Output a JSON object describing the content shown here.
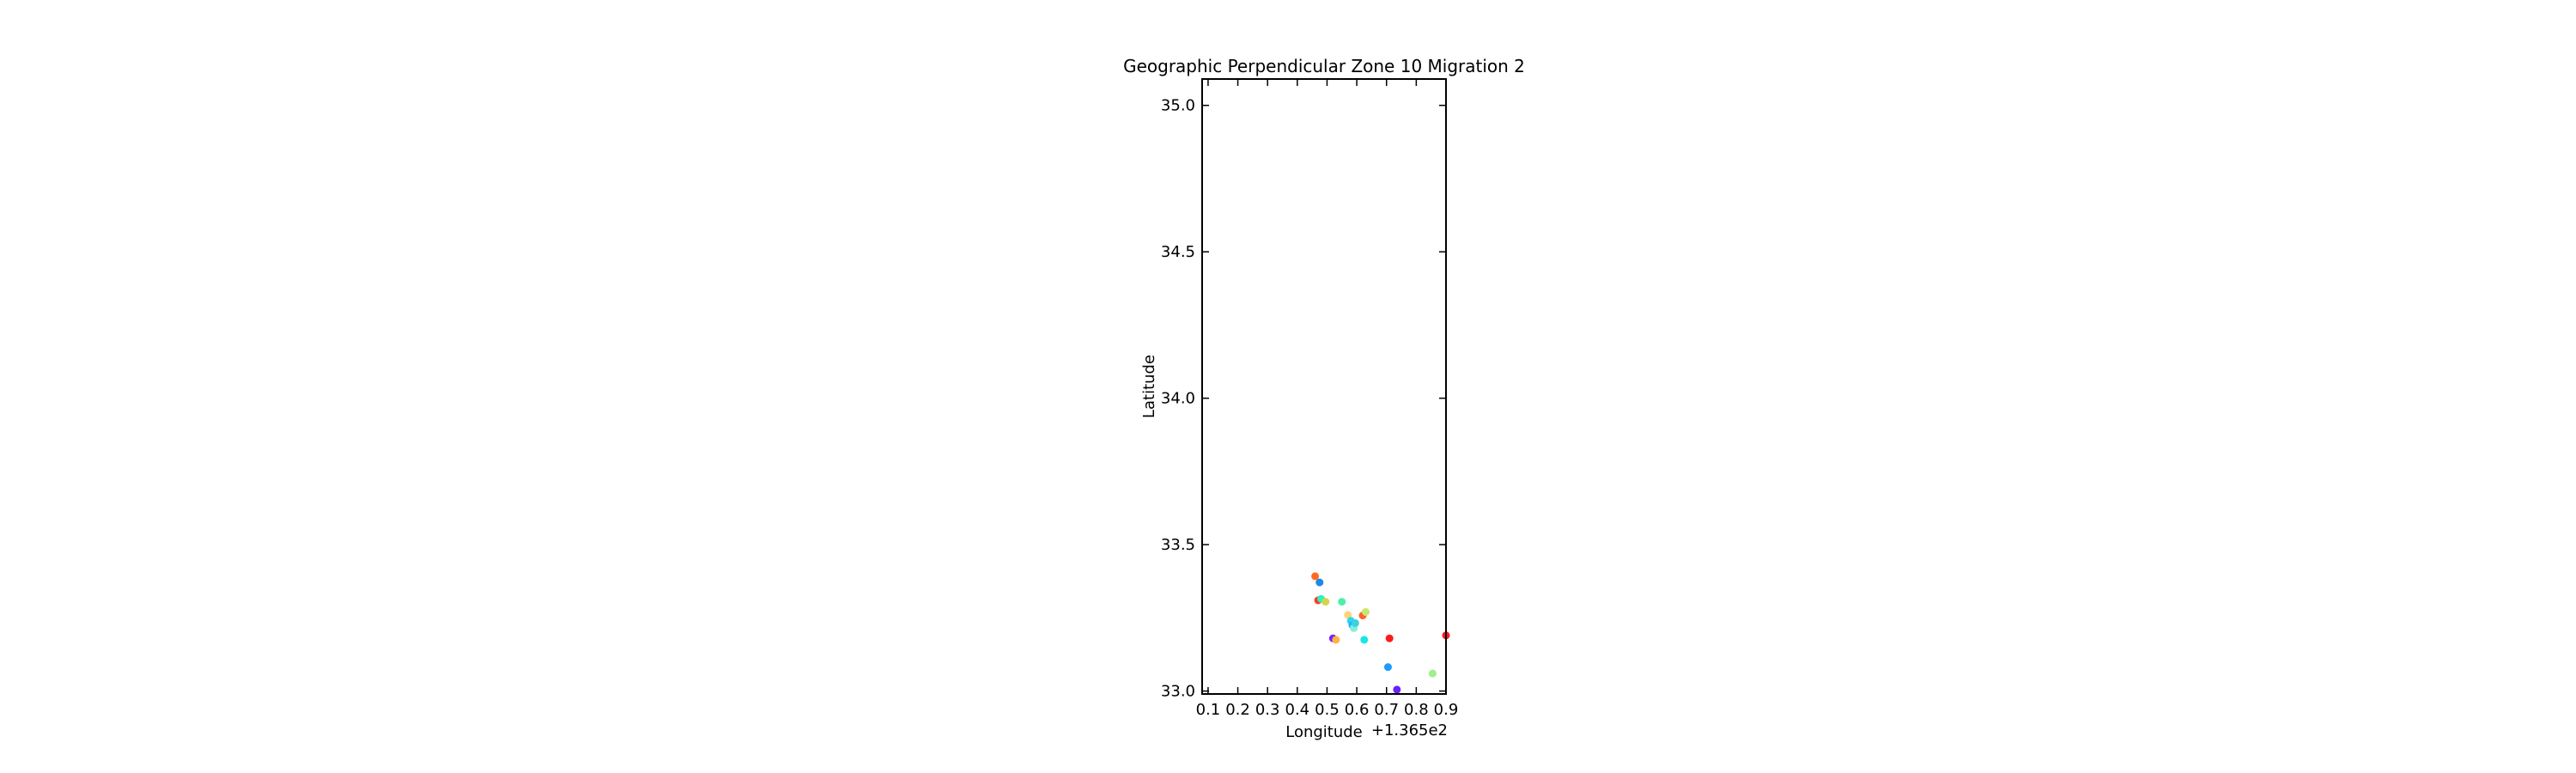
{
  "chart_data": {
    "type": "scatter",
    "title": "Geographic Perpendicular Zone 10 Migration 2",
    "xlabel": "Longitude",
    "ylabel": "Latitude",
    "x_offset_label": "+1.365e2",
    "xlim": [
      136.58,
      137.4
    ],
    "ylim": [
      32.99,
      35.09
    ],
    "x_ticks": [
      136.6,
      136.7,
      136.8,
      136.9,
      137.0,
      137.1,
      137.2,
      137.3,
      137.4
    ],
    "x_tick_labels": [
      "0.1",
      "0.2",
      "0.3",
      "0.4",
      "0.5",
      "0.6",
      "0.7",
      "0.8",
      "0.9"
    ],
    "y_ticks": [
      33.0,
      33.5,
      34.0,
      34.5,
      35.0
    ],
    "y_tick_labels": [
      "33.0",
      "33.5",
      "34.0",
      "34.5",
      "35.0"
    ],
    "grid": false,
    "legend": "none",
    "colors": {
      "axes": "#000000",
      "background": "#ffffff"
    },
    "points": [
      {
        "x": 136.96,
        "y": 33.392,
        "color": "#ff6a1f"
      },
      {
        "x": 136.975,
        "y": 33.371,
        "color": "#1e88e5"
      },
      {
        "x": 136.97,
        "y": 33.31,
        "color": "#ff3b1f"
      },
      {
        "x": 136.98,
        "y": 33.315,
        "color": "#2ef0c8"
      },
      {
        "x": 136.995,
        "y": 33.305,
        "color": "#d4d44a"
      },
      {
        "x": 137.02,
        "y": 33.18,
        "color": "#7b1fff"
      },
      {
        "x": 137.03,
        "y": 33.175,
        "color": "#ffb347"
      },
      {
        "x": 137.05,
        "y": 33.305,
        "color": "#4df0a8"
      },
      {
        "x": 137.07,
        "y": 33.26,
        "color": "#ffd27a"
      },
      {
        "x": 137.08,
        "y": 33.24,
        "color": "#2ad6f0"
      },
      {
        "x": 137.085,
        "y": 33.225,
        "color": "#1fb4ff"
      },
      {
        "x": 137.09,
        "y": 33.215,
        "color": "#7df0d8"
      },
      {
        "x": 137.095,
        "y": 33.232,
        "color": "#3fd0e0"
      },
      {
        "x": 137.12,
        "y": 33.258,
        "color": "#ff6030"
      },
      {
        "x": 137.13,
        "y": 33.27,
        "color": "#c8e86a"
      },
      {
        "x": 137.125,
        "y": 33.175,
        "color": "#1ae6e6"
      },
      {
        "x": 137.21,
        "y": 33.18,
        "color": "#ff1a1a"
      },
      {
        "x": 137.205,
        "y": 33.082,
        "color": "#1a9cff"
      },
      {
        "x": 137.235,
        "y": 33.005,
        "color": "#6a1fff"
      },
      {
        "x": 137.355,
        "y": 33.06,
        "color": "#9ef08a"
      },
      {
        "x": 137.4,
        "y": 33.19,
        "color": "#ff1a1a"
      }
    ]
  }
}
